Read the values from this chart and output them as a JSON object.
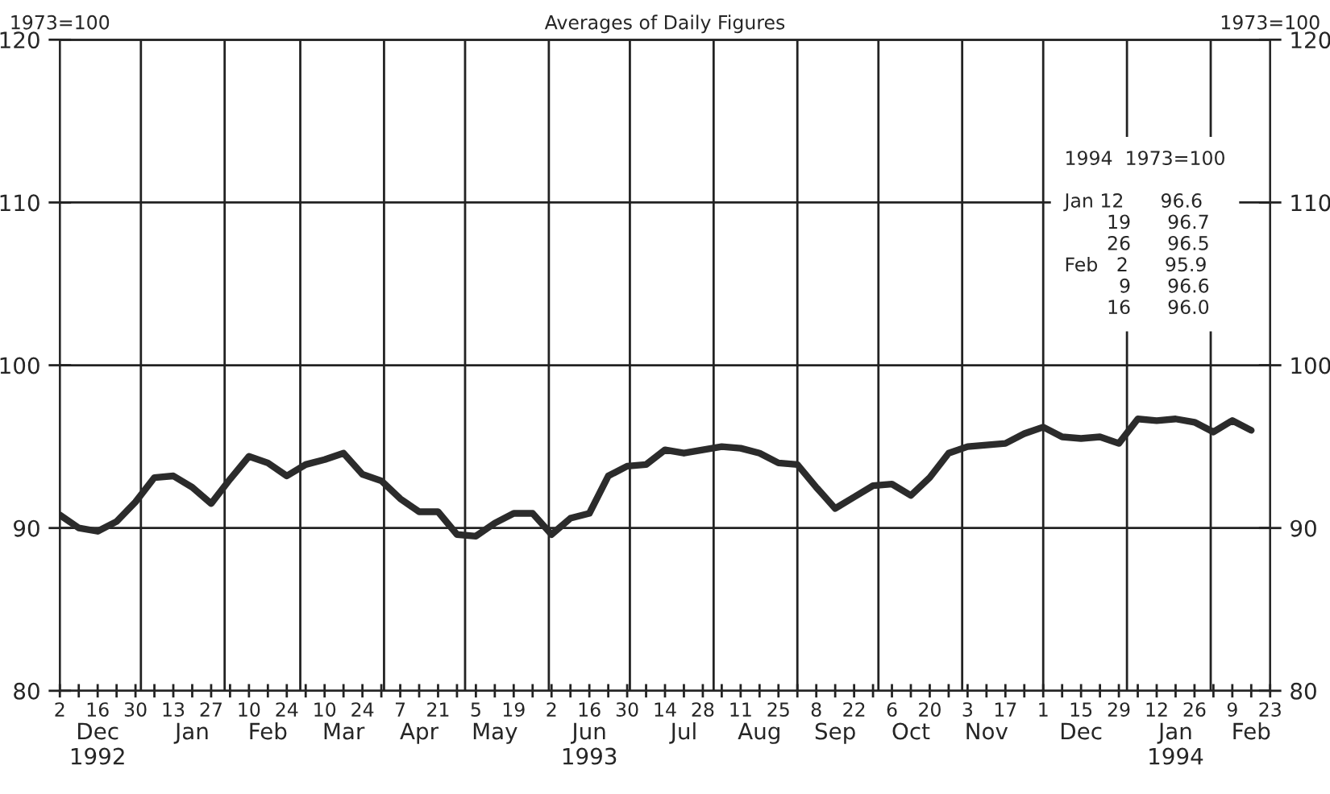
{
  "chart_data": {
    "type": "line",
    "subtitle": "Averages of Daily Figures",
    "ylabel": "1973=100",
    "y2label": "1973=100",
    "x": [
      "1992-12-02",
      "1992-12-09",
      "1992-12-16",
      "1992-12-23",
      "1992-12-30",
      "1993-01-06",
      "1993-01-13",
      "1993-01-20",
      "1993-01-27",
      "1993-02-03",
      "1993-02-10",
      "1993-02-17",
      "1993-02-24",
      "1993-03-03",
      "1993-03-10",
      "1993-03-17",
      "1993-03-24",
      "1993-03-31",
      "1993-04-07",
      "1993-04-14",
      "1993-04-21",
      "1993-04-28",
      "1993-05-05",
      "1993-05-12",
      "1993-05-19",
      "1993-05-26",
      "1993-06-02",
      "1993-06-09",
      "1993-06-16",
      "1993-06-23",
      "1993-06-30",
      "1993-07-07",
      "1993-07-14",
      "1993-07-21",
      "1993-07-28",
      "1993-08-04",
      "1993-08-11",
      "1993-08-18",
      "1993-08-25",
      "1993-09-01",
      "1993-09-08",
      "1993-09-15",
      "1993-09-22",
      "1993-09-29",
      "1993-10-06",
      "1993-10-13",
      "1993-10-20",
      "1993-10-27",
      "1993-11-03",
      "1993-11-10",
      "1993-11-17",
      "1993-11-24",
      "1993-12-01",
      "1993-12-08",
      "1993-12-15",
      "1993-12-22",
      "1993-12-29",
      "1994-01-05",
      "1994-01-12",
      "1994-01-19",
      "1994-01-26",
      "1994-02-02",
      "1994-02-09",
      "1994-02-16"
    ],
    "series": [
      {
        "color": "#2b2b2b",
        "values": [
          90.8,
          90.0,
          89.8,
          90.4,
          91.6,
          93.1,
          93.2,
          92.5,
          91.5,
          93.0,
          94.4,
          94.0,
          93.2,
          93.9,
          94.2,
          94.6,
          93.3,
          92.9,
          91.8,
          91.0,
          91.0,
          89.6,
          89.5,
          90.3,
          90.9,
          90.9,
          89.6,
          90.6,
          90.9,
          93.2,
          93.8,
          93.9,
          94.8,
          94.6,
          94.8,
          95.0,
          94.9,
          94.6,
          94.0,
          93.9,
          92.5,
          91.2,
          91.9,
          92.6,
          92.7,
          92.0,
          93.1,
          94.6,
          95.0,
          95.1,
          95.2,
          95.8,
          96.2,
          95.6,
          95.5,
          95.6,
          95.2,
          96.7,
          96.6,
          96.7,
          96.5,
          95.9,
          96.6,
          96.0
        ]
      }
    ],
    "xlim": [
      "1992-12-02",
      "1994-02-23"
    ],
    "xticks": [
      {
        "value": "1992-12-02",
        "label": "2"
      },
      {
        "value": "1992-12-09",
        "label": null
      },
      {
        "value": "1992-12-16",
        "label": "16"
      },
      {
        "value": "1992-12-23",
        "label": null
      },
      {
        "value": "1992-12-30",
        "label": "30"
      },
      {
        "value": "1993-01-06",
        "label": null
      },
      {
        "value": "1993-01-13",
        "label": "13"
      },
      {
        "value": "1993-01-20",
        "label": null
      },
      {
        "value": "1993-01-27",
        "label": "27"
      },
      {
        "value": "1993-02-03",
        "label": null
      },
      {
        "value": "1993-02-10",
        "label": "10"
      },
      {
        "value": "1993-02-17",
        "label": null
      },
      {
        "value": "1993-02-24",
        "label": "24"
      },
      {
        "value": "1993-03-03",
        "label": null
      },
      {
        "value": "1993-03-10",
        "label": "10"
      },
      {
        "value": "1993-03-17",
        "label": null
      },
      {
        "value": "1993-03-24",
        "label": "24"
      },
      {
        "value": "1993-03-31",
        "label": null
      },
      {
        "value": "1993-04-07",
        "label": "7"
      },
      {
        "value": "1993-04-14",
        "label": null
      },
      {
        "value": "1993-04-21",
        "label": "21"
      },
      {
        "value": "1993-04-28",
        "label": null
      },
      {
        "value": "1993-05-05",
        "label": "5"
      },
      {
        "value": "1993-05-12",
        "label": null
      },
      {
        "value": "1993-05-19",
        "label": "19"
      },
      {
        "value": "1993-05-26",
        "label": null
      },
      {
        "value": "1993-06-02",
        "label": "2"
      },
      {
        "value": "1993-06-09",
        "label": null
      },
      {
        "value": "1993-06-16",
        "label": "16"
      },
      {
        "value": "1993-06-23",
        "label": null
      },
      {
        "value": "1993-06-30",
        "label": "30"
      },
      {
        "value": "1993-07-07",
        "label": null
      },
      {
        "value": "1993-07-14",
        "label": "14"
      },
      {
        "value": "1993-07-21",
        "label": null
      },
      {
        "value": "1993-07-28",
        "label": "28"
      },
      {
        "value": "1993-08-04",
        "label": null
      },
      {
        "value": "1993-08-11",
        "label": "11"
      },
      {
        "value": "1993-08-18",
        "label": null
      },
      {
        "value": "1993-08-25",
        "label": "25"
      },
      {
        "value": "1993-09-01",
        "label": null
      },
      {
        "value": "1993-09-08",
        "label": "8"
      },
      {
        "value": "1993-09-15",
        "label": null
      },
      {
        "value": "1993-09-22",
        "label": "22"
      },
      {
        "value": "1993-09-29",
        "label": null
      },
      {
        "value": "1993-10-06",
        "label": "6"
      },
      {
        "value": "1993-10-13",
        "label": null
      },
      {
        "value": "1993-10-20",
        "label": "20"
      },
      {
        "value": "1993-10-27",
        "label": null
      },
      {
        "value": "1993-11-03",
        "label": "3"
      },
      {
        "value": "1993-11-10",
        "label": null
      },
      {
        "value": "1993-11-17",
        "label": "17"
      },
      {
        "value": "1993-11-24",
        "label": null
      },
      {
        "value": "1993-12-01",
        "label": "1"
      },
      {
        "value": "1993-12-08",
        "label": null
      },
      {
        "value": "1993-12-15",
        "label": "15"
      },
      {
        "value": "1993-12-22",
        "label": null
      },
      {
        "value": "1993-12-29",
        "label": "29"
      },
      {
        "value": "1994-01-05",
        "label": null
      },
      {
        "value": "1994-01-12",
        "label": "12"
      },
      {
        "value": "1994-01-19",
        "label": null
      },
      {
        "value": "1994-01-26",
        "label": "26"
      },
      {
        "value": "1994-02-02",
        "label": null
      },
      {
        "value": "1994-02-09",
        "label": "9"
      },
      {
        "value": "1994-02-16",
        "label": null
      },
      {
        "value": "1994-02-23",
        "label": "23"
      }
    ],
    "x2lim": [
      "1992-12-02",
      "1994-02-23"
    ],
    "x2ticks": [
      {
        "value": "1992-12-16",
        "label": "Dec\n1992"
      },
      {
        "value": "1993-01-20",
        "label": "Jan"
      },
      {
        "value": "1993-02-17",
        "label": "Feb"
      },
      {
        "value": "1993-03-17",
        "label": "Mar"
      },
      {
        "value": "1993-04-14",
        "label": "Apr"
      },
      {
        "value": "1993-05-12",
        "label": "May"
      },
      {
        "value": "1993-06-16",
        "label": "Jun\n1993"
      },
      {
        "value": "1993-07-21",
        "label": "Jul"
      },
      {
        "value": "1993-08-18",
        "label": "Aug"
      },
      {
        "value": "1993-09-15",
        "label": "Sep"
      },
      {
        "value": "1993-10-13",
        "label": "Oct"
      },
      {
        "value": "1993-11-10",
        "label": "Nov"
      },
      {
        "value": "1993-12-15",
        "label": "Dec"
      },
      {
        "value": "1994-01-19",
        "label": "Jan\n1994"
      },
      {
        "value": "1994-02-16",
        "label": "Feb"
      }
    ],
    "ylim": [
      80,
      120
    ],
    "yticks": [
      80,
      90,
      100,
      110,
      120
    ],
    "y2lim": [
      80,
      120
    ],
    "y2ticks": [
      80,
      90,
      100,
      110,
      120
    ],
    "grid": "y",
    "ref_lines": [
      {
        "axis": "x",
        "value": "1993-01-01"
      },
      {
        "axis": "x",
        "value": "1993-02-01"
      },
      {
        "axis": "x",
        "value": "1993-03-01"
      },
      {
        "axis": "x",
        "value": "1993-04-01"
      },
      {
        "axis": "x",
        "value": "1993-05-01"
      },
      {
        "axis": "x",
        "value": "1993-06-01"
      },
      {
        "axis": "x",
        "value": "1993-07-01"
      },
      {
        "axis": "x",
        "value": "1993-08-01"
      },
      {
        "axis": "x",
        "value": "1993-09-01"
      },
      {
        "axis": "x",
        "value": "1993-10-01"
      },
      {
        "axis": "x",
        "value": "1993-11-01"
      },
      {
        "axis": "x",
        "value": "1993-12-01"
      },
      {
        "axis": "x",
        "value": "1994-01-01"
      },
      {
        "axis": "x",
        "value": "1994-02-01"
      }
    ],
    "annotations": [
      "1994  1973=100\n\nJan 12      96.6\n       19      96.7\n       26      96.5\nFeb   2      95.9\n         9      96.6\n       16      96.0"
    ],
    "legend": false,
    "marker": "none",
    "line_style": "solid"
  }
}
